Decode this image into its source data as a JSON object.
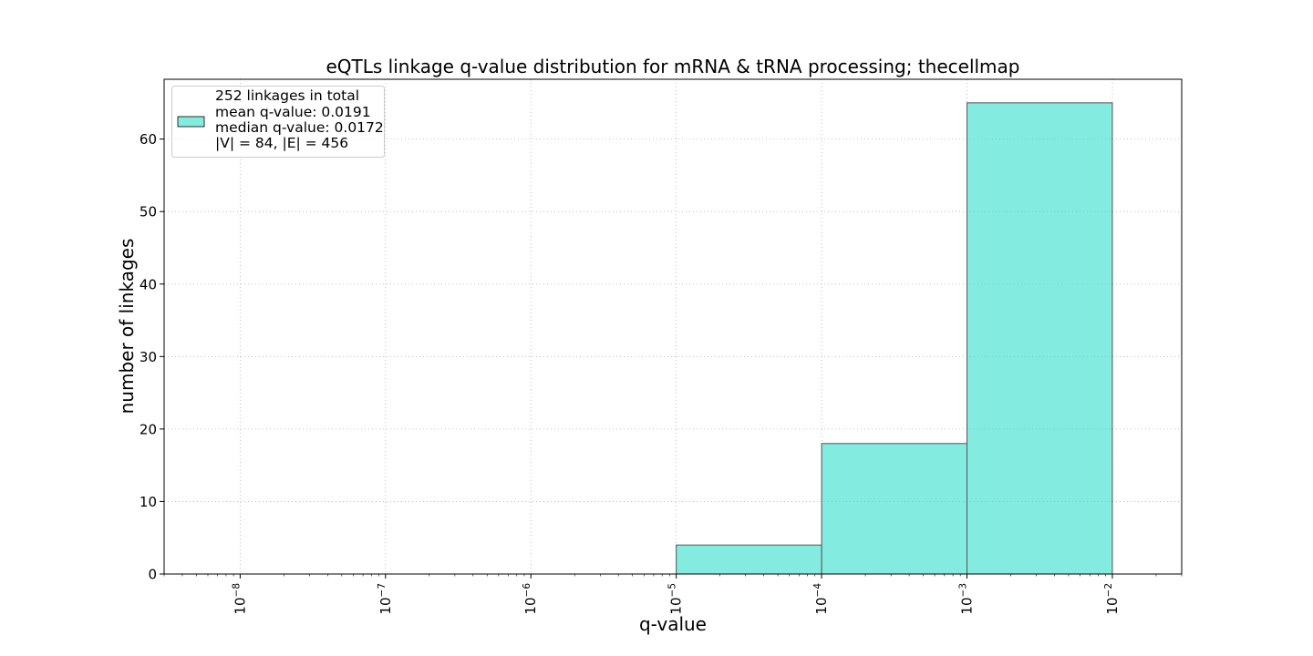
{
  "chart_data": {
    "type": "bar",
    "title": "eQTLs linkage q-value distribution for mRNA & tRNA processing; thecellmap",
    "xlabel": "q-value",
    "ylabel": "number of linkages",
    "x_scale": "log",
    "xlim": [
      3e-09,
      0.03
    ],
    "ylim": [
      0,
      68.25
    ],
    "grid": true,
    "legend_position": "top-left",
    "x_ticks": [
      {
        "value": 1e-08,
        "base": "10",
        "exp": "−8"
      },
      {
        "value": 1e-07,
        "base": "10",
        "exp": "−7"
      },
      {
        "value": 1e-06,
        "base": "10",
        "exp": "−6"
      },
      {
        "value": 1e-05,
        "base": "10",
        "exp": "−5"
      },
      {
        "value": 0.0001,
        "base": "10",
        "exp": "−4"
      },
      {
        "value": 0.001,
        "base": "10",
        "exp": "−3"
      },
      {
        "value": 0.01,
        "base": "10",
        "exp": "−2"
      }
    ],
    "y_ticks": [
      0,
      10,
      20,
      30,
      40,
      50,
      60
    ],
    "bins": [
      {
        "start": 1e-08,
        "end": 1e-07,
        "count": 0
      },
      {
        "start": 1e-07,
        "end": 1e-06,
        "count": 0
      },
      {
        "start": 1e-06,
        "end": 1e-05,
        "count": 0
      },
      {
        "start": 1e-05,
        "end": 0.0001,
        "count": 4
      },
      {
        "start": 0.0001,
        "end": 0.001,
        "count": 18
      },
      {
        "start": 0.001,
        "end": 0.01,
        "count": 65
      }
    ],
    "bar_color": "#40E0D0",
    "legend_lines": [
      "252 linkages in total",
      "mean q-value: 0.0191",
      "median q-value: 0.0172",
      "|V| = 84, |E| = 456"
    ]
  }
}
